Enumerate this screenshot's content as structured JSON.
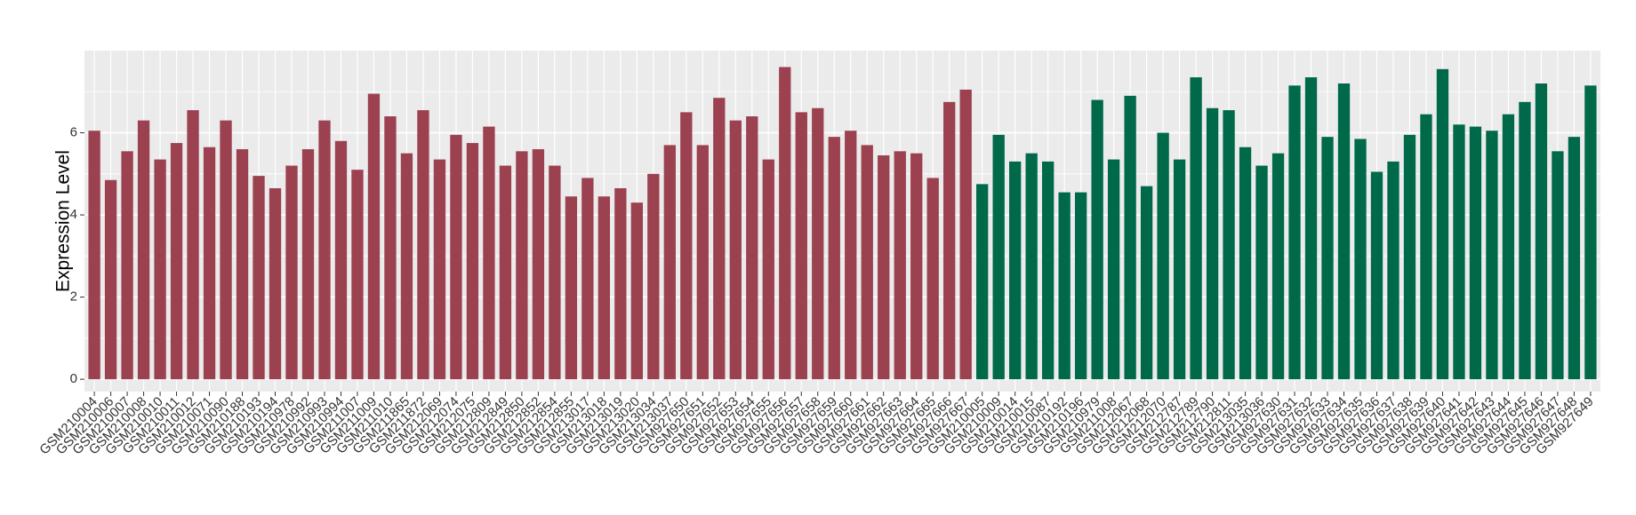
{
  "chart_data": {
    "type": "bar",
    "y_label": "Expression Level",
    "categories": [
      "GSM210004",
      "GSM210006",
      "GSM210007",
      "GSM210008",
      "GSM210010",
      "GSM210011",
      "GSM210012",
      "GSM210071",
      "GSM210090",
      "GSM210188",
      "GSM210193",
      "GSM210194",
      "GSM210978",
      "GSM210992",
      "GSM210993",
      "GSM210994",
      "GSM211007",
      "GSM211009",
      "GSM211010",
      "GSM211865",
      "GSM211872",
      "GSM212069",
      "GSM212074",
      "GSM212075",
      "GSM212809",
      "GSM212849",
      "GSM212850",
      "GSM212852",
      "GSM212854",
      "GSM212855",
      "GSM213017",
      "GSM213018",
      "GSM213019",
      "GSM213020",
      "GSM213034",
      "GSM213037",
      "GSM927650",
      "GSM927651",
      "GSM927652",
      "GSM927653",
      "GSM927654",
      "GSM927655",
      "GSM927656",
      "GSM927657",
      "GSM927658",
      "GSM927659",
      "GSM927660",
      "GSM927661",
      "GSM927662",
      "GSM927663",
      "GSM927664",
      "GSM927665",
      "GSM927666",
      "GSM927667",
      "GSM210005",
      "GSM210009",
      "GSM210014",
      "GSM210015",
      "GSM210087",
      "GSM210192",
      "GSM210196",
      "GSM210979",
      "GSM211008",
      "GSM212067",
      "GSM212068",
      "GSM212070",
      "GSM212787",
      "GSM212789",
      "GSM212790",
      "GSM212811",
      "GSM213035",
      "GSM213036",
      "GSM927630",
      "GSM927631",
      "GSM927632",
      "GSM927633",
      "GSM927634",
      "GSM927635",
      "GSM927636",
      "GSM927637",
      "GSM927638",
      "GSM927639",
      "GSM927640",
      "GSM927641",
      "GSM927642",
      "GSM927643",
      "GSM927644",
      "GSM927645",
      "GSM927646",
      "GSM927647",
      "GSM927648",
      "GSM927649"
    ],
    "series": [
      {
        "color": "#9b4150",
        "values": [
          6.05,
          4.85,
          5.55,
          6.3,
          5.35,
          5.75,
          6.55,
          5.65,
          6.3,
          5.6,
          4.95,
          4.65,
          5.2,
          5.6,
          6.3,
          5.8,
          5.1,
          6.95,
          6.4,
          5.5,
          6.55,
          5.35,
          5.95,
          5.75,
          6.15,
          5.2,
          5.55,
          5.6,
          5.2,
          4.45,
          4.9,
          4.45,
          4.65,
          4.3,
          5.0,
          5.7,
          6.5,
          5.7,
          6.85,
          6.3,
          6.4,
          5.35,
          7.6,
          6.5,
          6.6,
          5.9,
          6.05,
          5.7,
          5.45,
          5.55,
          5.5,
          4.9,
          6.75,
          7.05,
          null,
          null,
          null,
          null,
          null,
          null,
          null,
          null,
          null,
          null,
          null,
          null,
          null,
          null,
          null,
          null,
          null,
          null,
          null,
          null,
          null,
          null,
          null,
          null,
          null,
          null,
          null,
          null,
          null,
          null,
          null,
          null,
          null,
          null,
          null,
          null,
          null,
          null
        ]
      },
      {
        "color": "#00694a",
        "values": [
          null,
          null,
          null,
          null,
          null,
          null,
          null,
          null,
          null,
          null,
          null,
          null,
          null,
          null,
          null,
          null,
          null,
          null,
          null,
          null,
          null,
          null,
          null,
          null,
          null,
          null,
          null,
          null,
          null,
          null,
          null,
          null,
          null,
          null,
          null,
          null,
          null,
          null,
          null,
          null,
          null,
          null,
          null,
          null,
          null,
          null,
          null,
          null,
          null,
          null,
          null,
          null,
          null,
          null,
          4.75,
          5.95,
          5.3,
          5.5,
          5.3,
          4.55,
          4.55,
          6.8,
          5.35,
          6.9,
          4.7,
          6.0,
          5.35,
          7.35,
          6.6,
          6.55,
          5.65,
          5.2,
          5.5,
          7.15,
          7.35,
          5.9,
          7.2,
          5.85,
          5.05,
          5.3,
          5.95,
          6.45,
          7.55,
          6.2,
          6.15,
          6.05,
          6.45,
          6.75,
          7.2,
          5.55,
          5.9,
          7.15
        ]
      }
    ],
    "ylim": [
      -0.3,
      8.0
    ],
    "yticks": [
      0,
      2,
      4,
      6
    ],
    "grid": true
  }
}
